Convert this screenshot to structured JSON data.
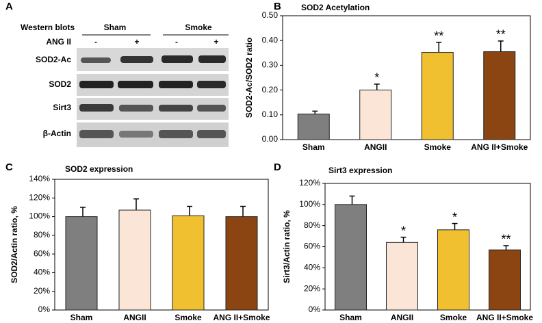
{
  "blot": {
    "panel": "A",
    "title": "Western blots",
    "groups": [
      "Sham",
      "Smoke"
    ],
    "treatment": "ANG II",
    "signs": [
      "-",
      "+",
      "-",
      "+"
    ],
    "rows": [
      "SOD2-Ac",
      "SOD2",
      "Sirt3",
      "β-Actin"
    ]
  },
  "chart_data": [
    {
      "type": "bar",
      "panel": "B",
      "title": "SOD2 Acetylation",
      "y_label": "SOD2-Ac/SOD2 ratio",
      "categories": [
        "Sham",
        "ANGII",
        "Smoke",
        "ANG II+Smoke"
      ],
      "values": [
        0.103,
        0.2,
        0.352,
        0.355
      ],
      "errors": [
        0.012,
        0.024,
        0.041,
        0.043
      ],
      "annotations": [
        null,
        "*",
        "**",
        "**"
      ],
      "colors": [
        "#7f7f7f",
        "#fbe5d6",
        "#f0c030",
        "#8b4513"
      ],
      "ylim": [
        0,
        0.5
      ],
      "yticks": [
        {
          "value": 0,
          "label": "0.00"
        },
        {
          "value": 0.1,
          "label": "0.10"
        },
        {
          "value": 0.2,
          "label": "0.20"
        },
        {
          "value": 0.3,
          "label": "0.30"
        },
        {
          "value": 0.4,
          "label": "0.40"
        },
        {
          "value": 0.5,
          "label": "0.50"
        }
      ]
    },
    {
      "type": "bar",
      "panel": "C",
      "title": "SOD2 expression",
      "y_label": "SOD2/Actin ratio, %",
      "categories": [
        "Sham",
        "ANGII",
        "Smoke",
        "ANG II+Smoke"
      ],
      "values": [
        100,
        107,
        101,
        100
      ],
      "errors": [
        10,
        12,
        10,
        11
      ],
      "colors": [
        "#7f7f7f",
        "#fbe5d6",
        "#f0c030",
        "#8b4513"
      ],
      "ylim": [
        0,
        140
      ],
      "yticks": [
        {
          "value": 0,
          "label": "0%"
        },
        {
          "value": 20,
          "label": "20%"
        },
        {
          "value": 40,
          "label": "40%"
        },
        {
          "value": 60,
          "label": "60%"
        },
        {
          "value": 80,
          "label": "80%"
        },
        {
          "value": 100,
          "label": "100%"
        },
        {
          "value": 120,
          "label": "120%"
        },
        {
          "value": 140,
          "label": "140%"
        }
      ]
    },
    {
      "type": "bar",
      "panel": "D",
      "title": "Sirt3 expression",
      "y_label": "Sirt3/Actin ratio, %",
      "categories": [
        "Sham",
        "ANGII",
        "Smoke",
        "ANG II+Smoke"
      ],
      "values": [
        100,
        64,
        76,
        57
      ],
      "errors": [
        8,
        5,
        6,
        4
      ],
      "annotations": [
        null,
        "*",
        "*",
        "**"
      ],
      "colors": [
        "#7f7f7f",
        "#fbe5d6",
        "#f0c030",
        "#8b4513"
      ],
      "ylim": [
        0,
        120
      ],
      "yticks": [
        {
          "value": 0,
          "label": "0%"
        },
        {
          "value": 20,
          "label": "20%"
        },
        {
          "value": 40,
          "label": "40%"
        },
        {
          "value": 60,
          "label": "60%"
        },
        {
          "value": 80,
          "label": "80%"
        },
        {
          "value": 100,
          "label": "100%"
        },
        {
          "value": 120,
          "label": "120%"
        }
      ]
    }
  ]
}
